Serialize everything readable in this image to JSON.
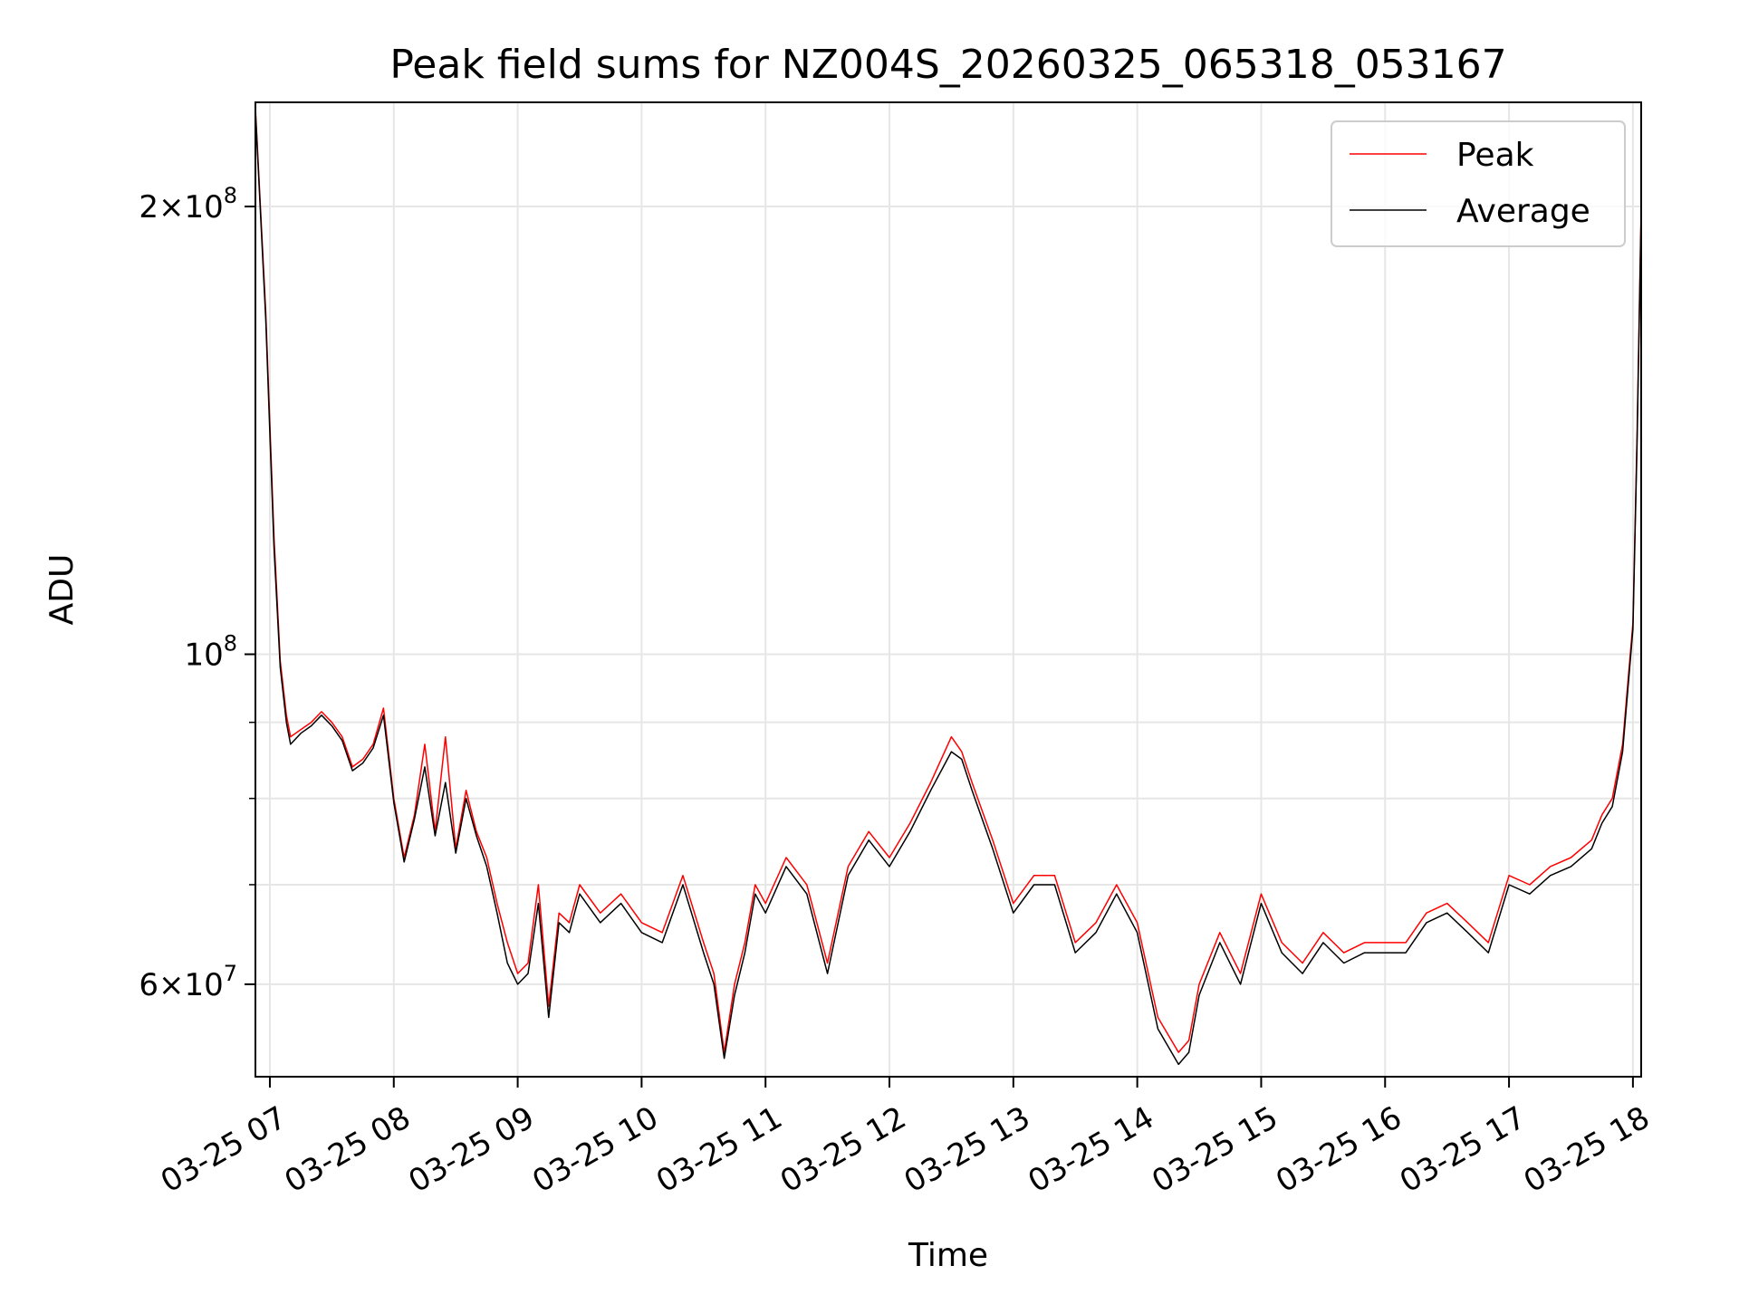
{
  "chart_data": {
    "type": "line",
    "title": "Peak field sums for NZ004S_20260325_065318_053167",
    "xlabel": "Time",
    "ylabel": "ADU",
    "yscale": "log",
    "ylim": [
      52000000,
      235000000
    ],
    "xlim": [
      "2026-03-25 06:53",
      "2026-03-25 18:04"
    ],
    "grid": true,
    "legend": "top-right",
    "x_ticks": [
      "03-25 07",
      "03-25 08",
      "03-25 09",
      "03-25 10",
      "03-25 11",
      "03-25 12",
      "03-25 13",
      "03-25 14",
      "03-25 15",
      "03-25 16",
      "03-25 17",
      "03-25 18"
    ],
    "y_ticks": [
      {
        "value": 200000000,
        "mant": "2",
        "exp": "8"
      },
      {
        "value": 100000000,
        "mant": "",
        "exp": "8"
      },
      {
        "value": 60000000,
        "mant": "6",
        "exp": "7"
      }
    ],
    "y_minor_ticks": [
      70000000,
      80000000,
      90000000
    ],
    "x": [
      "2026-03-25 06:53",
      "2026-03-25 06:58",
      "2026-03-25 07:02",
      "2026-03-25 07:05",
      "2026-03-25 07:08",
      "2026-03-25 07:10",
      "2026-03-25 07:15",
      "2026-03-25 07:20",
      "2026-03-25 07:25",
      "2026-03-25 07:30",
      "2026-03-25 07:35",
      "2026-03-25 07:40",
      "2026-03-25 07:45",
      "2026-03-25 07:50",
      "2026-03-25 07:55",
      "2026-03-25 08:00",
      "2026-03-25 08:05",
      "2026-03-25 08:10",
      "2026-03-25 08:15",
      "2026-03-25 08:20",
      "2026-03-25 08:25",
      "2026-03-25 08:30",
      "2026-03-25 08:35",
      "2026-03-25 08:40",
      "2026-03-25 08:45",
      "2026-03-25 08:50",
      "2026-03-25 08:55",
      "2026-03-25 09:00",
      "2026-03-25 09:05",
      "2026-03-25 09:10",
      "2026-03-25 09:15",
      "2026-03-25 09:20",
      "2026-03-25 09:25",
      "2026-03-25 09:30",
      "2026-03-25 09:40",
      "2026-03-25 09:50",
      "2026-03-25 10:00",
      "2026-03-25 10:10",
      "2026-03-25 10:20",
      "2026-03-25 10:30",
      "2026-03-25 10:35",
      "2026-03-25 10:40",
      "2026-03-25 10:45",
      "2026-03-25 10:50",
      "2026-03-25 10:55",
      "2026-03-25 11:00",
      "2026-03-25 11:10",
      "2026-03-25 11:20",
      "2026-03-25 11:30",
      "2026-03-25 11:40",
      "2026-03-25 11:50",
      "2026-03-25 12:00",
      "2026-03-25 12:10",
      "2026-03-25 12:20",
      "2026-03-25 12:30",
      "2026-03-25 12:35",
      "2026-03-25 12:40",
      "2026-03-25 12:50",
      "2026-03-25 13:00",
      "2026-03-25 13:10",
      "2026-03-25 13:20",
      "2026-03-25 13:30",
      "2026-03-25 13:40",
      "2026-03-25 13:50",
      "2026-03-25 14:00",
      "2026-03-25 14:10",
      "2026-03-25 14:20",
      "2026-03-25 14:25",
      "2026-03-25 14:30",
      "2026-03-25 14:40",
      "2026-03-25 14:50",
      "2026-03-25 15:00",
      "2026-03-25 15:10",
      "2026-03-25 15:20",
      "2026-03-25 15:30",
      "2026-03-25 15:40",
      "2026-03-25 15:50",
      "2026-03-25 16:00",
      "2026-03-25 16:10",
      "2026-03-25 16:20",
      "2026-03-25 16:30",
      "2026-03-25 16:40",
      "2026-03-25 16:50",
      "2026-03-25 17:00",
      "2026-03-25 17:10",
      "2026-03-25 17:20",
      "2026-03-25 17:30",
      "2026-03-25 17:40",
      "2026-03-25 17:45",
      "2026-03-25 17:50",
      "2026-03-25 17:55",
      "2026-03-25 18:00",
      "2026-03-25 18:02",
      "2026-03-25 18:04"
    ],
    "series": [
      {
        "name": "Peak",
        "color": "#ff0000",
        "values": [
          233000000,
          170000000,
          120000000,
          99000000,
          91000000,
          88000000,
          89000000,
          90000000,
          91500000,
          90000000,
          88000000,
          84000000,
          85000000,
          87000000,
          92000000,
          80000000,
          73000000,
          78000000,
          87000000,
          76000000,
          88000000,
          74000000,
          81000000,
          76000000,
          73000000,
          68000000,
          64000000,
          61000000,
          62000000,
          70000000,
          58000000,
          67000000,
          66000000,
          70000000,
          67000000,
          69000000,
          66000000,
          65000000,
          71000000,
          64000000,
          61000000,
          54000000,
          60000000,
          64000000,
          70000000,
          68000000,
          73000000,
          70000000,
          62000000,
          72000000,
          76000000,
          73000000,
          77000000,
          82000000,
          88000000,
          86000000,
          82000000,
          75000000,
          68000000,
          71000000,
          71000000,
          64000000,
          66000000,
          70000000,
          66000000,
          57000000,
          54000000,
          55000000,
          60000000,
          65000000,
          61000000,
          69000000,
          64000000,
          62000000,
          65000000,
          63000000,
          64000000,
          64000000,
          64000000,
          67000000,
          68000000,
          66000000,
          64000000,
          71000000,
          70000000,
          72000000,
          73000000,
          75000000,
          78000000,
          80000000,
          87000000,
          105000000,
          140000000,
          200000000
        ]
      },
      {
        "name": "Average",
        "color": "#000000",
        "values": [
          232000000,
          168000000,
          118000000,
          98000000,
          90000000,
          87000000,
          88500000,
          89500000,
          91000000,
          89500000,
          87500000,
          83500000,
          84500000,
          86500000,
          91000000,
          79500000,
          72500000,
          77500000,
          84000000,
          75500000,
          82000000,
          73500000,
          80000000,
          75500000,
          72000000,
          67000000,
          62000000,
          60000000,
          61000000,
          68000000,
          57000000,
          66000000,
          65000000,
          69000000,
          66000000,
          68000000,
          65000000,
          64000000,
          70000000,
          63000000,
          60000000,
          53500000,
          59000000,
          63000000,
          69000000,
          67000000,
          72000000,
          69000000,
          61000000,
          71000000,
          75000000,
          72000000,
          76000000,
          81000000,
          86000000,
          85000000,
          81000000,
          74000000,
          67000000,
          70000000,
          70000000,
          63000000,
          65000000,
          69000000,
          65000000,
          56000000,
          53000000,
          54000000,
          59000000,
          64000000,
          60000000,
          68000000,
          63000000,
          61000000,
          64000000,
          62000000,
          63000000,
          63000000,
          63000000,
          66000000,
          67000000,
          65000000,
          63000000,
          70000000,
          69000000,
          71000000,
          72000000,
          74000000,
          77000000,
          79000000,
          86000000,
          104000000,
          138000000,
          198000000
        ]
      }
    ]
  }
}
